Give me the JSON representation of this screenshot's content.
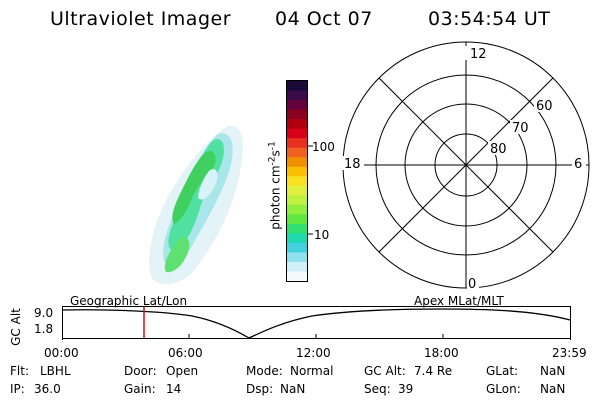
{
  "header": {
    "instrument": "Ultraviolet Imager",
    "date": "04 Oct 07",
    "time": "03:54:54 UT"
  },
  "colorbar": {
    "unit_label": "photon cm",
    "unit_exp1": "-2",
    "unit_s": "s",
    "unit_exp2": "-1",
    "tick_100": "100",
    "tick_10": "10",
    "colors_top_to_bottom": [
      "#1a0a3a",
      "#3a0a4a",
      "#66003a",
      "#8a0020",
      "#b00010",
      "#d8001a",
      "#e83020",
      "#f06020",
      "#f09000",
      "#f8c000",
      "#f8e020",
      "#e0f040",
      "#c0f040",
      "#90ee40",
      "#60e840",
      "#30e070",
      "#20d8b0",
      "#40d0e0",
      "#90e0f0",
      "#d0f0f8",
      "#f4fbfc"
    ]
  },
  "polar": {
    "mlt_12": "12",
    "mlt_18": "18",
    "mlt_6": "6",
    "mlt_0": "0",
    "lat_60": "60",
    "lat_70": "70",
    "lat_80": "80"
  },
  "timeline": {
    "label_left": "Geographic Lat/Lon",
    "label_right": "Apex MLat/MLT",
    "ylabel": "GC Alt",
    "ytick_top": "9.0",
    "ytick_bottom": "1.8",
    "xticks": [
      "00:00",
      "06:00",
      "12:00",
      "18:00",
      "23:59"
    ],
    "marker_time": "03:54:54"
  },
  "info": {
    "flt_label": "Flt:",
    "flt_value": "LBHL",
    "door_label": "Door:",
    "door_value": "Open",
    "mode_label": "Mode:",
    "mode_value": "Normal",
    "gcalt_label": "GC Alt:",
    "gcalt_value": "7.4 Re",
    "glat_label": "GLat:",
    "glat_value": "NaN",
    "ip_label": "IP:",
    "ip_value": "36.0",
    "gain_label": "Gain:",
    "gain_value": "14",
    "dsp_label": "Dsp:",
    "dsp_value": "NaN",
    "seq_label": "Seq:",
    "seq_value": "39",
    "glon_label": "GLon:",
    "glon_value": "NaN"
  }
}
